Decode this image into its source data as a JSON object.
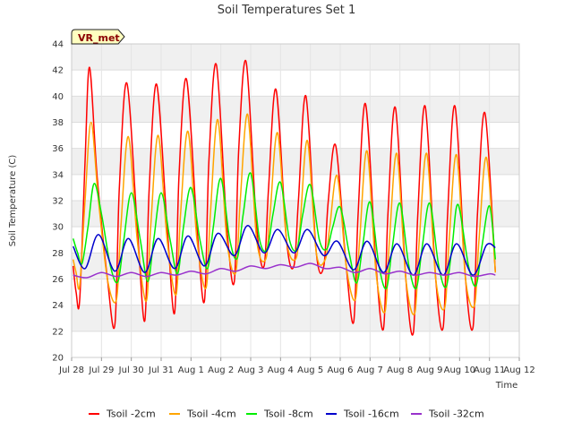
{
  "chart_data": {
    "type": "line",
    "title": "Soil Temperatures Set 1",
    "xlabel": "Time",
    "ylabel": "Soil Temperature (C)",
    "badge": "VR_met",
    "ylim": [
      20,
      44
    ],
    "yticks": [
      20,
      22,
      24,
      26,
      28,
      30,
      32,
      34,
      36,
      38,
      40,
      42,
      44
    ],
    "xlim": [
      0,
      15
    ],
    "xticks": [
      {
        "value": 0,
        "label": "Jul 28"
      },
      {
        "value": 1,
        "label": "Jul 29"
      },
      {
        "value": 2,
        "label": "Jul 30"
      },
      {
        "value": 3,
        "label": "Jul 31"
      },
      {
        "value": 4,
        "label": "Aug 1"
      },
      {
        "value": 5,
        "label": "Aug 2"
      },
      {
        "value": 6,
        "label": "Aug 3"
      },
      {
        "value": 7,
        "label": "Aug 4"
      },
      {
        "value": 8,
        "label": "Aug 5"
      },
      {
        "value": 9,
        "label": "Aug 6"
      },
      {
        "value": 10,
        "label": "Aug 7"
      },
      {
        "value": 11,
        "label": "Aug 8"
      },
      {
        "value": 12,
        "label": "Aug 9"
      },
      {
        "value": 13,
        "label": "Aug 10"
      },
      {
        "value": 14,
        "label": "Aug 11"
      },
      {
        "value": 15,
        "label": "Aug 12"
      }
    ],
    "grid": true,
    "legend_position": "bottom",
    "series": [
      {
        "name": "Tsoil -2cm",
        "color": "#ff0000",
        "x": [
          0.05,
          0.15,
          0.27,
          0.45,
          0.6,
          0.85,
          1.2,
          1.45,
          1.6,
          1.85,
          2.2,
          2.45,
          2.6,
          2.85,
          3.2,
          3.45,
          3.6,
          3.85,
          4.2,
          4.45,
          4.6,
          4.85,
          5.2,
          5.45,
          5.6,
          5.85,
          6.2,
          6.45,
          6.6,
          6.85,
          7.2,
          7.45,
          7.6,
          7.85,
          8.2,
          8.45,
          8.6,
          8.85,
          9.2,
          9.45,
          9.6,
          9.85,
          10.2,
          10.45,
          10.6,
          10.85,
          11.2,
          11.45,
          11.6,
          11.85,
          12.2,
          12.45,
          12.6,
          12.85,
          13.2,
          13.45,
          13.6,
          13.85,
          14.2
        ],
        "y": [
          27,
          25,
          24.4,
          35,
          42.2,
          34,
          26,
          22.5,
          33,
          41,
          30,
          22.8,
          33,
          40.9,
          30,
          23.4,
          34,
          41.3,
          30,
          24.3,
          35,
          42.4,
          30,
          25.8,
          36,
          42.6,
          30,
          27,
          33,
          40.5,
          29,
          27,
          32,
          40,
          28,
          27,
          32,
          36.2,
          27,
          22.7,
          31,
          39.4,
          27,
          22.2,
          31,
          39.1,
          26,
          21.9,
          31,
          39.2,
          26,
          22.3,
          31,
          39.2,
          26,
          22.3,
          31,
          38.7,
          26.5
        ]
      },
      {
        "name": "Tsoil -4cm",
        "color": "#ffa500",
        "x": [
          0.05,
          0.15,
          0.27,
          0.45,
          0.65,
          0.9,
          1.2,
          1.5,
          1.65,
          1.9,
          2.2,
          2.5,
          2.65,
          2.9,
          3.2,
          3.5,
          3.65,
          3.9,
          4.2,
          4.5,
          4.65,
          4.9,
          5.2,
          5.5,
          5.65,
          5.9,
          6.2,
          6.5,
          6.65,
          6.9,
          7.2,
          7.5,
          7.65,
          7.9,
          8.2,
          8.5,
          8.65,
          8.9,
          9.2,
          9.5,
          9.65,
          9.9,
          10.2,
          10.5,
          10.65,
          10.9,
          11.2,
          11.5,
          11.65,
          11.9,
          12.2,
          12.5,
          12.65,
          12.9,
          13.2,
          13.5,
          13.65,
          13.9,
          14.2
        ],
        "y": [
          27.5,
          26.5,
          25.5,
          32,
          38,
          32,
          26,
          24.4,
          30,
          36.9,
          29,
          24.3,
          30,
          37,
          29,
          24.8,
          31,
          37.3,
          29,
          25.3,
          31,
          38.2,
          29,
          26.5,
          32,
          38.6,
          29,
          27.5,
          31,
          37.2,
          29,
          27.5,
          30,
          36.6,
          28,
          27.5,
          30,
          33.9,
          27,
          24.4,
          29,
          35.8,
          26.5,
          23.5,
          29,
          35.6,
          26,
          23.4,
          29,
          35.6,
          26,
          23.8,
          29,
          35.5,
          26,
          24,
          29,
          35.3,
          26.5
        ]
      },
      {
        "name": "Tsoil -8cm",
        "color": "#00ee00",
        "x": [
          0.05,
          0.2,
          0.35,
          0.55,
          0.75,
          1.0,
          1.3,
          1.55,
          1.75,
          2.0,
          2.3,
          2.55,
          2.75,
          3.0,
          3.3,
          3.55,
          3.75,
          4.0,
          4.3,
          4.55,
          4.75,
          5.0,
          5.3,
          5.55,
          5.75,
          6.0,
          6.3,
          6.55,
          6.75,
          7.0,
          7.3,
          7.55,
          7.75,
          8.0,
          8.3,
          8.55,
          8.75,
          9.0,
          9.3,
          9.55,
          9.75,
          10.0,
          10.3,
          10.55,
          10.75,
          11.0,
          11.3,
          11.55,
          11.75,
          12.0,
          12.3,
          12.55,
          12.75,
          12.95,
          13.3,
          13.55,
          13.75,
          14.0,
          14.2
        ],
        "y": [
          29.1,
          28,
          27.2,
          30,
          33.3,
          31,
          27,
          25.8,
          29,
          32.6,
          29,
          25.8,
          29,
          32.6,
          29,
          26.4,
          30,
          33,
          29,
          26.8,
          30,
          33.7,
          29,
          27.6,
          31,
          34.1,
          29,
          28.3,
          31,
          33.4,
          29,
          28.3,
          31,
          33.2,
          29,
          28.3,
          30,
          31.5,
          28,
          25.7,
          28.5,
          31.9,
          27,
          25.3,
          28.5,
          31.8,
          27,
          25.3,
          28.5,
          31.8,
          27,
          25.4,
          28.5,
          31.7,
          27,
          25.5,
          28.5,
          31.6,
          27.5
        ]
      },
      {
        "name": "Tsoil -16cm",
        "color": "#0000cc",
        "x": [
          0.05,
          0.45,
          0.9,
          1.45,
          1.9,
          2.45,
          2.9,
          3.45,
          3.9,
          4.45,
          4.9,
          5.45,
          5.9,
          6.45,
          6.9,
          7.45,
          7.9,
          8.45,
          8.9,
          9.45,
          9.9,
          10.45,
          10.9,
          11.45,
          11.9,
          12.45,
          12.9,
          13.45,
          13.9,
          14.2
        ],
        "y": [
          28.5,
          26.8,
          29.4,
          26.6,
          29.1,
          26.5,
          29.1,
          26.8,
          29.3,
          27,
          29.5,
          27.8,
          30.1,
          28,
          29.8,
          28,
          29.8,
          27.8,
          28.9,
          26.7,
          28.9,
          26.5,
          28.7,
          26.3,
          28.7,
          26.3,
          28.7,
          26.3,
          28.6,
          28.4
        ]
      },
      {
        "name": "Tsoil -32cm",
        "color": "#9932cc",
        "x": [
          0.05,
          0.5,
          1.0,
          1.5,
          2.0,
          2.5,
          3.0,
          3.5,
          4.0,
          4.5,
          5.0,
          5.5,
          6.0,
          6.5,
          7.0,
          7.5,
          8.0,
          8.5,
          9.0,
          9.5,
          10.0,
          10.5,
          11.0,
          11.5,
          12.0,
          12.5,
          13.0,
          13.5,
          14.0,
          14.2
        ],
        "y": [
          26.3,
          26.1,
          26.5,
          26.2,
          26.5,
          26.2,
          26.5,
          26.3,
          26.6,
          26.4,
          26.8,
          26.6,
          27,
          26.8,
          27.1,
          26.9,
          27.2,
          26.8,
          26.9,
          26.5,
          26.8,
          26.4,
          26.6,
          26.3,
          26.5,
          26.3,
          26.5,
          26.2,
          26.4,
          26.3
        ]
      }
    ]
  }
}
